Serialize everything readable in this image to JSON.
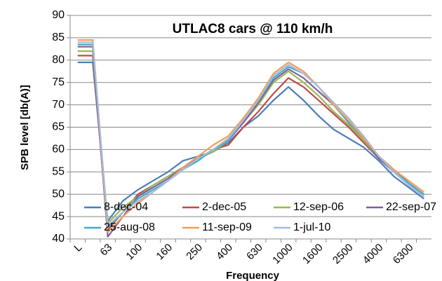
{
  "chart_data": {
    "type": "line",
    "title": "UTLAC8 cars @ 110 km/h",
    "y_label": "SPB level [db(A)]",
    "x_label": "Frequency",
    "categories": [
      "L",
      null,
      "63",
      null,
      "100",
      null,
      "160",
      null,
      "250",
      null,
      "400",
      null,
      "630",
      null,
      "1000",
      null,
      "1600",
      null,
      "2500",
      null,
      "4000",
      null,
      "6300",
      null
    ],
    "ylim": [
      40,
      90
    ],
    "yticks": [
      40,
      45,
      50,
      55,
      60,
      65,
      70,
      75,
      80,
      85,
      90
    ],
    "grid": true,
    "legend": "bottom",
    "series": [
      {
        "name": "8-dec-04",
        "color": "#4a7ebb",
        "values": [
          79.5,
          79.5,
          44,
          48.5,
          51,
          53,
          55,
          57.5,
          58.5,
          59.5,
          61.5,
          65,
          67.5,
          71,
          74,
          71,
          67.5,
          64.5,
          62.5,
          60.5,
          57.5,
          54,
          51.5,
          49
        ]
      },
      {
        "name": "2-dec-05",
        "color": "#be4b48",
        "values": [
          81,
          81,
          42,
          46,
          50,
          52,
          54,
          56,
          58,
          60,
          61,
          65,
          68.5,
          72.5,
          76,
          74,
          71,
          68,
          65,
          61.5,
          58,
          55,
          52,
          50
        ]
      },
      {
        "name": "12-sep-06",
        "color": "#98b954",
        "values": [
          82,
          82,
          43.5,
          47,
          49.5,
          52,
          54,
          56,
          58,
          59.5,
          62,
          66,
          70,
          75,
          77.5,
          75,
          72,
          68.5,
          65.5,
          62,
          58,
          55,
          52,
          50
        ]
      },
      {
        "name": "22-sep-07",
        "color": "#7d60a0",
        "values": [
          83,
          83,
          40.5,
          45,
          49.5,
          51.5,
          53.5,
          56,
          58,
          60,
          62,
          66,
          70.5,
          75.5,
          78,
          76,
          73,
          70,
          66,
          62.5,
          58,
          55,
          52,
          49.5
        ]
      },
      {
        "name": "25-aug-08",
        "color": "#46aac5",
        "values": [
          83.5,
          83.5,
          42.5,
          46,
          49,
          51,
          53,
          55.5,
          57.5,
          60,
          62,
          66.5,
          71,
          76,
          78.5,
          77,
          74,
          70,
          66,
          62.5,
          58.5,
          55.5,
          52.5,
          50
        ]
      },
      {
        "name": "11-sep-09",
        "color": "#f59d56",
        "values": [
          84.5,
          84.5,
          41.5,
          45,
          48,
          50.5,
          53,
          56,
          58.5,
          61,
          63,
          67,
          71.5,
          77,
          79.5,
          77.5,
          74,
          70,
          66.5,
          62.5,
          58.5,
          55.5,
          53,
          50.5
        ]
      },
      {
        "name": "1-jul-10",
        "color": "#a3bde0",
        "values": [
          84,
          84,
          43,
          46,
          48.5,
          50.5,
          53,
          55.5,
          58,
          60,
          62.5,
          66.5,
          71,
          76.5,
          79,
          77,
          74,
          70.5,
          67,
          63,
          58.5,
          55,
          52,
          49.5
        ]
      }
    ]
  }
}
